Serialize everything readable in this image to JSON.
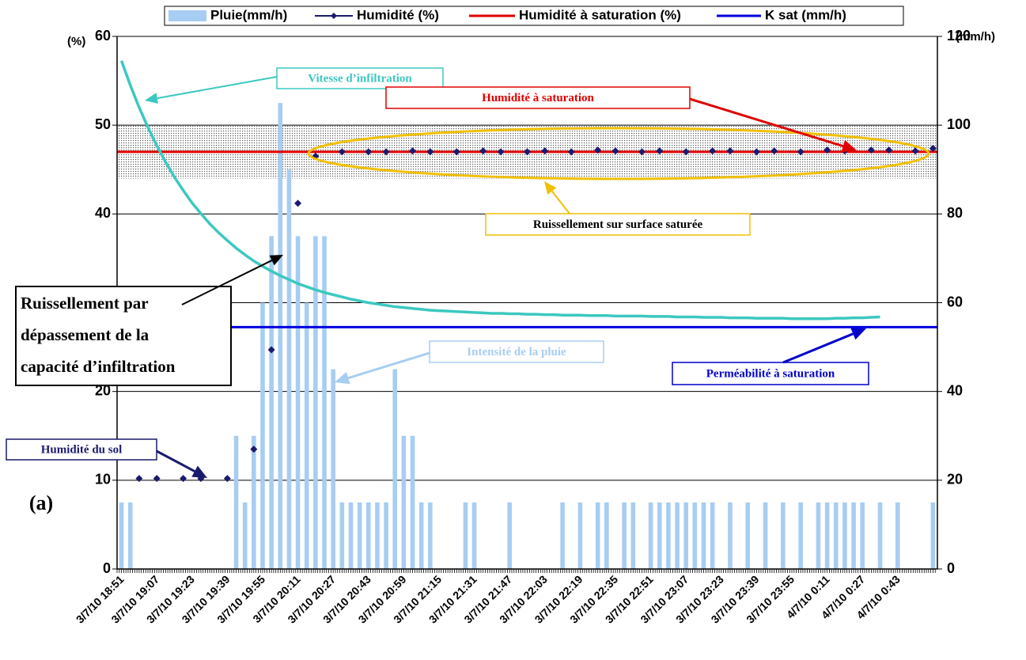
{
  "chart_data": {
    "type": "combo",
    "y_label": "(%)",
    "y2_label": "(mm/h)",
    "categories": [
      "3/7/10 18:51",
      null,
      null,
      null,
      "3/7/10 19:07",
      null,
      null,
      null,
      "3/7/10 19:23",
      null,
      null,
      null,
      "3/7/10 19:39",
      null,
      null,
      null,
      "3/7/10 19:55",
      null,
      null,
      null,
      "3/7/10 20:11",
      null,
      null,
      null,
      "3/7/10 20:27",
      null,
      null,
      null,
      "3/7/10 20:43",
      null,
      null,
      null,
      "3/7/10 20:59",
      null,
      null,
      null,
      "3/7/10 21:15",
      null,
      null,
      null,
      "3/7/10 21:31",
      null,
      null,
      null,
      "3/7/10 21:47",
      null,
      null,
      null,
      "3/7/10 22:03",
      null,
      null,
      null,
      "3/7/10 22:19",
      null,
      null,
      null,
      "3/7/10 22:35",
      null,
      null,
      null,
      "3/7/10 22:51",
      null,
      null,
      null,
      "3/7/10 23:07",
      null,
      null,
      null,
      "3/7/10 23:23",
      null,
      null,
      null,
      "3/7/10 23:39",
      null,
      null,
      null,
      "3/7/10 23:55",
      null,
      null,
      null,
      "4/7/10 0:11",
      null,
      null,
      null,
      "4/7/10 0:27",
      null,
      null,
      null,
      "4/7/10 0:43",
      null,
      null,
      null,
      null
    ],
    "ylim": [
      0,
      60
    ],
    "yticks": [
      0,
      10,
      20,
      30,
      40,
      50,
      60
    ],
    "y2lim": [
      0,
      120
    ],
    "y2ticks": [
      0,
      20,
      40,
      60,
      80,
      100,
      120
    ],
    "grid": true,
    "shaded_band": [
      44,
      50
    ],
    "series": [
      {
        "name": "Pluie(mm/h)",
        "type": "bar",
        "axis": "y2",
        "color": "#a8cdf2",
        "values": [
          15,
          15,
          0,
          0,
          0,
          0,
          0,
          0,
          0,
          0,
          0,
          0,
          0,
          30,
          15,
          30,
          60,
          75,
          105,
          90,
          75,
          60,
          75,
          75,
          45,
          15,
          15,
          15,
          15,
          15,
          15,
          45,
          30,
          30,
          15,
          15,
          0,
          0,
          0,
          15,
          15,
          0,
          0,
          0,
          15,
          0,
          0,
          0,
          0,
          0,
          15,
          0,
          15,
          0,
          15,
          15,
          0,
          15,
          15,
          0,
          15,
          15,
          15,
          15,
          15,
          15,
          15,
          15,
          0,
          15,
          0,
          15,
          0,
          15,
          0,
          15,
          0,
          15,
          0,
          15,
          15,
          15,
          15,
          15,
          15,
          0,
          15,
          0,
          15,
          0,
          0,
          0,
          15
        ]
      },
      {
        "name": "Humidité (%)",
        "type": "scatter",
        "axis": "y",
        "color": "#1a1a6e",
        "values": [
          null,
          null,
          10.2,
          null,
          10.2,
          null,
          null,
          10.2,
          null,
          10.2,
          null,
          null,
          10.2,
          null,
          null,
          13.5,
          null,
          24.7,
          null,
          null,
          41.2,
          null,
          46.5,
          null,
          null,
          47,
          null,
          null,
          47,
          null,
          47,
          null,
          null,
          47.1,
          null,
          47,
          null,
          null,
          47,
          null,
          null,
          47.1,
          null,
          47,
          null,
          null,
          47,
          null,
          47.1,
          null,
          null,
          47,
          null,
          null,
          47.2,
          null,
          47.1,
          null,
          null,
          47,
          null,
          47.1,
          null,
          null,
          47,
          null,
          null,
          47.1,
          null,
          47.1,
          null,
          null,
          47,
          null,
          47.1,
          null,
          null,
          47,
          null,
          null,
          47.2,
          null,
          47.1,
          null,
          null,
          47.2,
          null,
          47.2,
          null,
          null,
          47.1,
          null,
          47.4
        ]
      },
      {
        "type": "line",
        "axis": "y2",
        "color": "#3cc8c0",
        "values": [
          114.5,
          109,
          104,
          99.5,
          95.4,
          91.7,
          88.3,
          85.3,
          82.5,
          80.1,
          77.8,
          75.8,
          74,
          72.3,
          70.8,
          69.4,
          68.2,
          67.1,
          66.1,
          65.2,
          64.3,
          63.6,
          62.9,
          62.3,
          61.8,
          61.3,
          60.8,
          60.4,
          60,
          59.7,
          59.4,
          59.1,
          58.9,
          58.7,
          58.5,
          58.3,
          58.2,
          58.1,
          58,
          57.9,
          57.8,
          57.7,
          57.6,
          57.6,
          57.5,
          57.5,
          57.4,
          57.4,
          57.3,
          57.3,
          57.2,
          57.2,
          57.2,
          57.1,
          57.1,
          57.1,
          57,
          57,
          57,
          57,
          56.9,
          56.9,
          56.9,
          56.8,
          56.8,
          56.8,
          56.7,
          56.7,
          56.7,
          56.6,
          56.6,
          56.6,
          56.5,
          56.5,
          56.5,
          56.5,
          56.4,
          56.4,
          56.4,
          56.4,
          56.4,
          56.5,
          56.5,
          56.6,
          56.6,
          56.7,
          56.8,
          null,
          null,
          null,
          null,
          null,
          null
        ]
      }
    ],
    "reference_lines": [
      {
        "name": "Humidité à saturation (%)",
        "axis": "y",
        "color": "#e00000",
        "value": 47
      },
      {
        "name": "K sat (mm/h)",
        "axis": "y2",
        "color": "#0000e0",
        "value": 54.5
      }
    ],
    "annotations": [
      "Vitesse d’infiltration",
      "Humidité à saturation",
      "Ruissellement sur surface saturée",
      [
        "Ruissellement par",
        "dépassement de la",
        "capacité d’infiltration"
      ],
      "Intensité de la pluie",
      "Perméabilité  à saturation",
      "Humidité du sol",
      "(a)"
    ]
  }
}
